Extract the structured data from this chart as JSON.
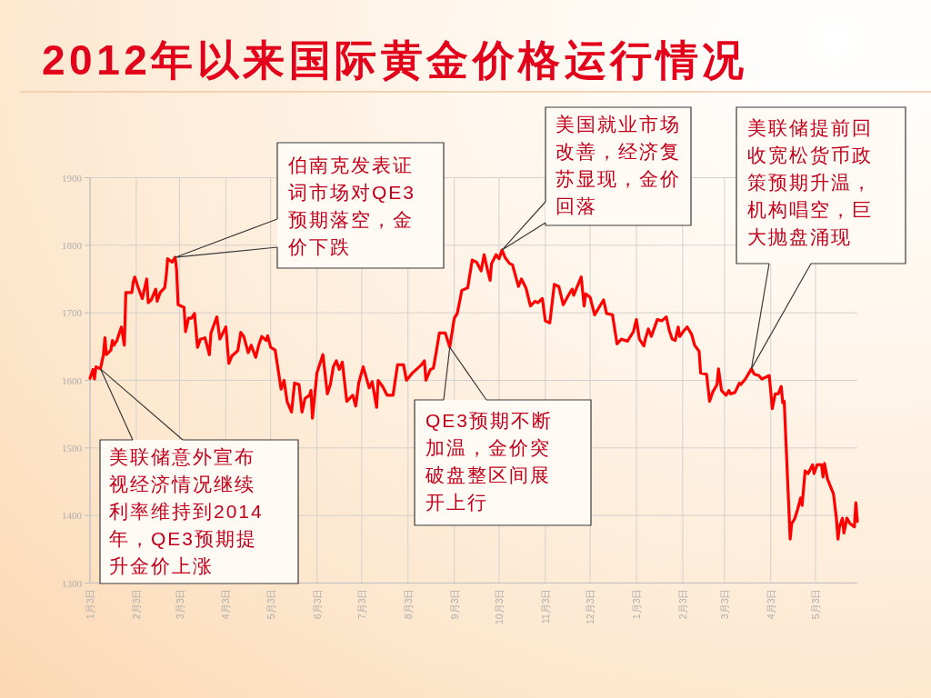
{
  "chart_data": {
    "type": "line",
    "title": "2012年以来国际黄金价格运行情况",
    "x": [
      "2012-01-03",
      "2012-01-05",
      "2012-01-06",
      "2012-01-07",
      "2012-01-10",
      "2012-01-12",
      "2012-01-13",
      "2012-01-14",
      "2012-01-17",
      "2012-01-18",
      "2012-01-19",
      "2012-01-21",
      "2012-01-24",
      "2012-01-26",
      "2012-01-27",
      "2012-01-31",
      "2012-02-01",
      "2012-02-02",
      "2012-02-04",
      "2012-02-07",
      "2012-02-10",
      "2012-02-11",
      "2012-02-13",
      "2012-02-16",
      "2012-02-17",
      "2012-02-19",
      "2012-02-22",
      "2012-02-23",
      "2012-02-24",
      "2012-02-27",
      "2012-02-29",
      "2012-03-01",
      "2012-03-02",
      "2012-03-06",
      "2012-03-07",
      "2012-03-09",
      "2012-03-11",
      "2012-03-13",
      "2012-03-15",
      "2012-03-17",
      "2012-03-20",
      "2012-03-23",
      "2012-03-24",
      "2012-03-28",
      "2012-03-30",
      "2012-04-03",
      "2012-04-05",
      "2012-04-07",
      "2012-04-11",
      "2012-04-13",
      "2012-04-15",
      "2012-04-18",
      "2012-04-20",
      "2012-04-23",
      "2012-04-25",
      "2012-04-27",
      "2012-04-30",
      "2012-05-01",
      "2012-05-03",
      "2012-05-06",
      "2012-05-10",
      "2012-05-12",
      "2012-05-14",
      "2012-05-17",
      "2012-05-19",
      "2012-05-22",
      "2012-05-24",
      "2012-05-26",
      "2012-05-29",
      "2012-05-30",
      "2012-05-31",
      "2012-06-03",
      "2012-06-07",
      "2012-06-10",
      "2012-06-12",
      "2012-06-14",
      "2012-06-16",
      "2012-06-18",
      "2012-06-20",
      "2012-06-23",
      "2012-06-27",
      "2012-06-29",
      "2012-07-01",
      "2012-07-04",
      "2012-07-08",
      "2012-07-10",
      "2012-07-13",
      "2012-07-14",
      "2012-07-17",
      "2012-07-20",
      "2012-07-24",
      "2012-07-27",
      "2012-07-31",
      "2012-08-02",
      "2012-08-06",
      "2012-08-12",
      "2012-08-14",
      "2012-08-15",
      "2012-08-18",
      "2012-08-20",
      "2012-08-22",
      "2012-08-24",
      "2012-08-28",
      "2012-08-31",
      "2012-09-03",
      "2012-09-05",
      "2012-09-07",
      "2012-09-08",
      "2012-09-12",
      "2012-09-15",
      "2012-09-18",
      "2012-09-21",
      "2012-09-23",
      "2012-09-25",
      "2012-09-27",
      "2012-09-28",
      "2012-10-01",
      "2012-10-03",
      "2012-10-05",
      "2012-10-07",
      "2012-10-10",
      "2012-10-12",
      "2012-10-16",
      "2012-10-18",
      "2012-10-21",
      "2012-10-24",
      "2012-10-27",
      "2012-10-29",
      "2012-11-01",
      "2012-11-03",
      "2012-11-06",
      "2012-11-09",
      "2012-11-12",
      "2012-11-15",
      "2012-11-19",
      "2012-11-21",
      "2012-11-22",
      "2012-11-27",
      "2012-11-29",
      "2012-11-30",
      "2012-12-03",
      "2012-12-06",
      "2012-12-12",
      "2012-12-14",
      "2012-12-18",
      "2012-12-21",
      "2012-12-24",
      "2012-12-28",
      "2013-01-01",
      "2013-01-03",
      "2013-01-05",
      "2013-01-08",
      "2013-01-09",
      "2013-01-11",
      "2013-01-13",
      "2013-01-17",
      "2013-01-20",
      "2013-01-23",
      "2013-01-25",
      "2013-01-27",
      "2013-01-29",
      "2013-01-31",
      "2013-02-01",
      "2013-02-04",
      "2013-02-06",
      "2013-02-09",
      "2013-02-11",
      "2013-02-14",
      "2013-02-15",
      "2013-02-19",
      "2013-02-21",
      "2013-02-23",
      "2013-02-26",
      "2013-02-27",
      "2013-03-01",
      "2013-03-04",
      "2013-03-06",
      "2013-03-07",
      "2013-03-10",
      "2013-03-13",
      "2013-03-14",
      "2013-03-17",
      "2013-03-21",
      "2013-03-23",
      "2013-03-26",
      "2013-03-28",
      "2013-03-31",
      "2013-04-02",
      "2013-04-04",
      "2013-04-06",
      "2013-04-08",
      "2013-04-10",
      "2013-04-11",
      "2013-04-12",
      "2013-04-16",
      "2013-04-17",
      "2013-04-19",
      "2013-04-21",
      "2013-04-23",
      "2013-04-24",
      "2013-04-26",
      "2013-04-28",
      "2013-05-01",
      "2013-05-02",
      "2013-05-04",
      "2013-05-07",
      "2013-05-08",
      "2013-05-09",
      "2013-05-11",
      "2013-05-15",
      "2013-05-17",
      "2013-05-18",
      "2013-05-19",
      "2013-05-21",
      "2013-05-22",
      "2013-05-24",
      "2013-05-26",
      "2013-05-29",
      "2013-05-30",
      "2013-05-31"
    ],
    "series": [
      {
        "color": "#ff0000",
        "values": [
          1603,
          1616,
          1602,
          1620,
          1617,
          1638,
          1663,
          1638,
          1645,
          1659,
          1652,
          1659,
          1679,
          1652,
          1730,
          1730,
          1746,
          1753,
          1739,
          1721,
          1750,
          1715,
          1719,
          1735,
          1717,
          1730,
          1737,
          1753,
          1780,
          1775,
          1782,
          1764,
          1712,
          1708,
          1672,
          1692,
          1692,
          1699,
          1649,
          1661,
          1663,
          1638,
          1670,
          1694,
          1661,
          1679,
          1625,
          1636,
          1644,
          1671,
          1665,
          1641,
          1652,
          1634,
          1652,
          1665,
          1659,
          1666,
          1649,
          1645,
          1587,
          1600,
          1569,
          1553,
          1596,
          1594,
          1553,
          1573,
          1578,
          1585,
          1544,
          1611,
          1638,
          1580,
          1594,
          1620,
          1629,
          1616,
          1627,
          1569,
          1578,
          1562,
          1596,
          1620,
          1589,
          1598,
          1560,
          1600,
          1591,
          1578,
          1578,
          1623,
          1623,
          1600,
          1611,
          1623,
          1629,
          1600,
          1616,
          1618,
          1643,
          1670,
          1670,
          1649,
          1692,
          1699,
          1721,
          1733,
          1737,
          1778,
          1775,
          1762,
          1786,
          1766,
          1748,
          1773,
          1786,
          1780,
          1793,
          1782,
          1773,
          1771,
          1739,
          1750,
          1737,
          1710,
          1717,
          1715,
          1721,
          1688,
          1685,
          1742,
          1739,
          1712,
          1728,
          1735,
          1726,
          1753,
          1710,
          1728,
          1723,
          1697,
          1719,
          1699,
          1697,
          1654,
          1661,
          1658,
          1672,
          1690,
          1661,
          1651,
          1661,
          1676,
          1665,
          1690,
          1688,
          1694,
          1674,
          1661,
          1659,
          1679,
          1665,
          1674,
          1679,
          1668,
          1652,
          1643,
          1611,
          1609,
          1569,
          1582,
          1594,
          1617,
          1585,
          1578,
          1585,
          1580,
          1582,
          1596,
          1594,
          1602,
          1617,
          1609,
          1607,
          1602,
          1605,
          1607,
          1558,
          1580,
          1580,
          1591,
          1567,
          1569,
          1365,
          1388,
          1395,
          1409,
          1426,
          1415,
          1466,
          1462,
          1475,
          1462,
          1475,
          1475,
          1457,
          1477,
          1454,
          1432,
          1395,
          1365,
          1383,
          1396,
          1374,
          1396,
          1388,
          1383,
          1419,
          1391
        ]
      }
    ],
    "xlim": [
      "2012-01-03",
      "2013-05-31"
    ],
    "xticks": [
      {
        "value": "2012-01-03",
        "label": "1月3日"
      },
      {
        "value": "2012-02-03",
        "label": "2月3日"
      },
      {
        "value": "2012-03-03",
        "label": "3月3日"
      },
      {
        "value": "2012-04-03",
        "label": "4月3日"
      },
      {
        "value": "2012-05-03",
        "label": "5月3日"
      },
      {
        "value": "2012-06-03",
        "label": "6月3日"
      },
      {
        "value": "2012-07-03",
        "label": "7月3日"
      },
      {
        "value": "2012-08-03",
        "label": "8月3日"
      },
      {
        "value": "2012-09-03",
        "label": "9月3日"
      },
      {
        "value": "2012-10-03",
        "label": "10月3日"
      },
      {
        "value": "2012-11-03",
        "label": "11月3日"
      },
      {
        "value": "2012-12-03",
        "label": "12月3日"
      },
      {
        "value": "2013-01-03",
        "label": "1月3日"
      },
      {
        "value": "2013-02-03",
        "label": "2月3日"
      },
      {
        "value": "2013-03-03",
        "label": "3月3日"
      },
      {
        "value": "2013-04-03",
        "label": "4月3日"
      },
      {
        "value": "2013-05-03",
        "label": "5月3日"
      }
    ],
    "ylim": [
      1300,
      1900
    ],
    "yticks": [
      1300,
      1400,
      1500,
      1600,
      1700,
      1800,
      1900
    ],
    "grid": true,
    "annotations": [
      {
        "text": "美联储意外宣布视经济情况继续利率维持到2014年，QE3预期提升金价上涨",
        "x": "2012-01-10",
        "y": 1617
      },
      {
        "text": "伯南克发表证词市场对QE3预期落空，金价下跌",
        "x": "2012-02-29",
        "y": 1782
      },
      {
        "text": "QE3预期不断加温，金价突破盘整区间展开上行",
        "x": "2012-08-31",
        "y": 1649
      },
      {
        "text": "美国就业市场改善，经济复苏显现，金价回落",
        "x": "2012-10-05",
        "y": 1793
      },
      {
        "text": "美联储提前回收宽松货币政策预期升温，机构唱空，巨大抛盘涌现",
        "x": "2013-03-21",
        "y": 1617
      }
    ]
  }
}
